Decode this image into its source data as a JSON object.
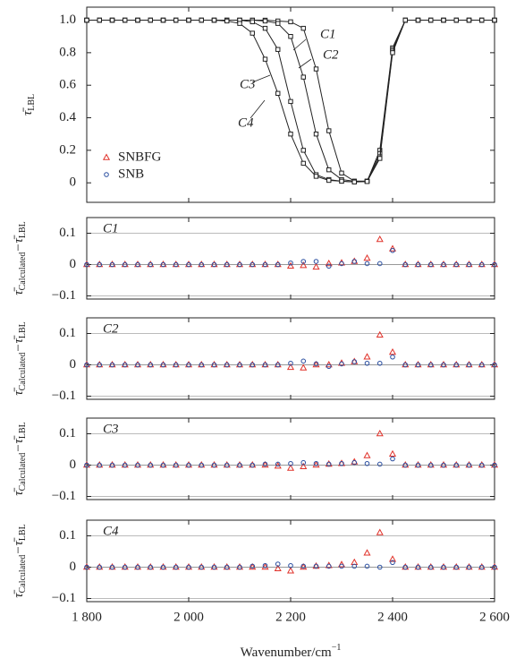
{
  "chart_data": [
    {
      "type": "line",
      "marker": "square",
      "ylabel": [
        "τ̄",
        "LBL"
      ],
      "x": [
        1800,
        1825,
        1850,
        1875,
        1900,
        1925,
        1950,
        1975,
        2000,
        2025,
        2050,
        2075,
        2100,
        2125,
        2150,
        2175,
        2200,
        2225,
        2250,
        2275,
        2300,
        2325,
        2350,
        2375,
        2400,
        2425,
        2450,
        2475,
        2500,
        2525,
        2550,
        2575,
        2600
      ],
      "xlim": [
        1800,
        2600
      ],
      "xticks": [
        1800,
        2000,
        2200,
        2400,
        2600
      ],
      "ylim": [
        -0.12,
        1.08
      ],
      "yticks": [
        0,
        0.2,
        0.4,
        0.6,
        0.8,
        {
          "value": 1,
          "label": "1.0"
        }
      ],
      "series": [
        {
          "name": "C1",
          "color": "#222222",
          "values": [
            1,
            1,
            1,
            1,
            1,
            1,
            1,
            1,
            1,
            1,
            1,
            1,
            1,
            1,
            1,
            0.995,
            0.99,
            0.95,
            0.7,
            0.32,
            0.06,
            0.01,
            0.01,
            0.2,
            0.83,
            1,
            1,
            1,
            1,
            1,
            1,
            1,
            1
          ]
        },
        {
          "name": "C2",
          "color": "#222222",
          "values": [
            1,
            1,
            1,
            1,
            1,
            1,
            1,
            1,
            1,
            1,
            1,
            1,
            1,
            1,
            0.995,
            0.98,
            0.9,
            0.65,
            0.3,
            0.08,
            0.02,
            0.01,
            0.01,
            0.18,
            0.82,
            1,
            1,
            1,
            1,
            1,
            1,
            1,
            1
          ]
        },
        {
          "name": "C3",
          "color": "#222222",
          "values": [
            1,
            1,
            1,
            1,
            1,
            1,
            1,
            1,
            1,
            1,
            1,
            1,
            1,
            0.99,
            0.95,
            0.82,
            0.5,
            0.2,
            0.05,
            0.02,
            0.01,
            0.005,
            0.01,
            0.16,
            0.81,
            1,
            1,
            1,
            1,
            1,
            1,
            1,
            1
          ]
        },
        {
          "name": "C4",
          "color": "#222222",
          "values": [
            1,
            1,
            1,
            1,
            1,
            1,
            1,
            1,
            1,
            1,
            1,
            0.995,
            0.98,
            0.92,
            0.76,
            0.55,
            0.3,
            0.12,
            0.04,
            0.015,
            0.01,
            0.005,
            0.008,
            0.15,
            0.8,
            1,
            1,
            1,
            1,
            1,
            1,
            1,
            1
          ]
        }
      ],
      "legend": [
        {
          "name": "SNBFG",
          "color": "#e0322a",
          "marker": "triangle"
        },
        {
          "name": "SNB",
          "color": "#2a4ea0",
          "marker": "circle"
        }
      ]
    },
    {
      "type": "scatter",
      "panel_label": "C1",
      "ylabel": [
        "τ̄",
        "Calculated",
        "−τ̄",
        "LBL"
      ],
      "x": [
        1800,
        1825,
        1850,
        1875,
        1900,
        1925,
        1950,
        1975,
        2000,
        2025,
        2050,
        2075,
        2100,
        2125,
        2150,
        2175,
        2200,
        2225,
        2250,
        2275,
        2300,
        2325,
        2350,
        2375,
        2400,
        2425,
        2450,
        2475,
        2500,
        2525,
        2550,
        2575,
        2600
      ],
      "xlim": [
        1800,
        2600
      ],
      "xticks": [
        1800,
        2000,
        2200,
        2400,
        2600
      ],
      "ylim": [
        -0.11,
        0.15
      ],
      "yticks": [
        {
          "value": -0.1,
          "label": "−0.1"
        },
        0,
        0.1
      ],
      "grid": true,
      "series": [
        {
          "color": "#e0322a",
          "marker": "triangle",
          "values": [
            0,
            0,
            0,
            0,
            0,
            0,
            0,
            0,
            0,
            0,
            0,
            0,
            0,
            0,
            0,
            0,
            -0.005,
            -0.003,
            -0.008,
            0.003,
            0.005,
            0.01,
            0.02,
            0.08,
            0.05,
            0,
            0,
            0,
            0,
            0,
            0,
            0,
            0
          ]
        },
        {
          "color": "#2a4ea0",
          "marker": "circle",
          "values": [
            0,
            0,
            0,
            0,
            0,
            0,
            0,
            0,
            0,
            0,
            0,
            0,
            0,
            0,
            0,
            0,
            0.005,
            0.01,
            0.01,
            -0.005,
            0.003,
            0.01,
            0.003,
            0.003,
            0.045,
            0,
            0,
            0,
            0,
            0,
            0,
            0,
            0
          ]
        }
      ]
    },
    {
      "type": "scatter",
      "panel_label": "C2",
      "ylabel": [
        "τ̄",
        "Calculated",
        "−τ̄",
        "LBL"
      ],
      "x": [
        1800,
        1825,
        1850,
        1875,
        1900,
        1925,
        1950,
        1975,
        2000,
        2025,
        2050,
        2075,
        2100,
        2125,
        2150,
        2175,
        2200,
        2225,
        2250,
        2275,
        2300,
        2325,
        2350,
        2375,
        2400,
        2425,
        2450,
        2475,
        2500,
        2525,
        2550,
        2575,
        2600
      ],
      "xlim": [
        1800,
        2600
      ],
      "xticks": [
        1800,
        2000,
        2200,
        2400,
        2600
      ],
      "ylim": [
        -0.11,
        0.15
      ],
      "yticks": [
        {
          "value": -0.1,
          "label": "−0.1"
        },
        0,
        0.1
      ],
      "grid": true,
      "series": [
        {
          "color": "#e0322a",
          "marker": "triangle",
          "values": [
            0,
            0,
            0,
            0,
            0,
            0,
            0,
            0,
            0,
            0,
            0,
            0,
            0,
            0,
            0,
            0,
            -0.008,
            -0.01,
            0,
            0,
            0.005,
            0.01,
            0.025,
            0.095,
            0.04,
            0,
            0,
            0,
            0,
            0,
            0,
            0,
            0
          ]
        },
        {
          "color": "#2a4ea0",
          "marker": "circle",
          "values": [
            0,
            0,
            0,
            0,
            0,
            0,
            0,
            0,
            0,
            0,
            0,
            0,
            0,
            0,
            0,
            0,
            0.005,
            0.012,
            0.003,
            -0.005,
            0.003,
            0.01,
            0.005,
            0.005,
            0.025,
            0,
            0,
            0,
            0,
            0,
            0,
            0,
            0
          ]
        }
      ]
    },
    {
      "type": "scatter",
      "panel_label": "C3",
      "ylabel": [
        "τ̄",
        "Calculated",
        "−τ̄",
        "LBL"
      ],
      "x": [
        1800,
        1825,
        1850,
        1875,
        1900,
        1925,
        1950,
        1975,
        2000,
        2025,
        2050,
        2075,
        2100,
        2125,
        2150,
        2175,
        2200,
        2225,
        2250,
        2275,
        2300,
        2325,
        2350,
        2375,
        2400,
        2425,
        2450,
        2475,
        2500,
        2525,
        2550,
        2575,
        2600
      ],
      "xlim": [
        1800,
        2600
      ],
      "xticks": [
        1800,
        2000,
        2200,
        2400,
        2600
      ],
      "ylim": [
        -0.11,
        0.15
      ],
      "yticks": [
        {
          "value": -0.1,
          "label": "−0.1"
        },
        0,
        0.1
      ],
      "grid": true,
      "series": [
        {
          "color": "#e0322a",
          "marker": "triangle",
          "values": [
            0,
            0,
            0,
            0,
            0,
            0,
            0,
            0,
            0,
            0,
            0,
            0,
            0,
            0,
            0,
            -0.003,
            -0.01,
            -0.005,
            0,
            0.003,
            0.005,
            0.01,
            0.03,
            0.1,
            0.035,
            0,
            0,
            0,
            0,
            0,
            0,
            0,
            0
          ]
        },
        {
          "color": "#2a4ea0",
          "marker": "circle",
          "values": [
            0,
            0,
            0,
            0,
            0,
            0,
            0,
            0,
            0,
            0,
            0,
            0,
            0,
            0,
            0.003,
            0.003,
            0.005,
            0.008,
            0.005,
            0.003,
            0.005,
            0.008,
            0.005,
            0.003,
            0.02,
            0,
            0,
            0,
            0,
            0,
            0,
            0,
            0
          ]
        }
      ]
    },
    {
      "type": "scatter",
      "panel_label": "C4",
      "ylabel": [
        "τ̄",
        "Calculated",
        "−τ̄",
        "LBL"
      ],
      "xlabel": [
        "Wavenumber/cm",
        "−1"
      ],
      "x": [
        1800,
        1825,
        1850,
        1875,
        1900,
        1925,
        1950,
        1975,
        2000,
        2025,
        2050,
        2075,
        2100,
        2125,
        2150,
        2175,
        2200,
        2225,
        2250,
        2275,
        2300,
        2325,
        2350,
        2375,
        2400,
        2425,
        2450,
        2475,
        2500,
        2525,
        2550,
        2575,
        2600
      ],
      "xlim": [
        1800,
        2600
      ],
      "xticks": [
        {
          "value": 1800,
          "label": "1 800"
        },
        {
          "value": 2000,
          "label": "2 000"
        },
        {
          "value": 2200,
          "label": "2 200"
        },
        {
          "value": 2400,
          "label": "2 400"
        },
        {
          "value": 2600,
          "label": "2 600"
        }
      ],
      "ylim": [
        -0.11,
        0.15
      ],
      "yticks": [
        {
          "value": -0.1,
          "label": "−0.1"
        },
        0,
        0.1
      ],
      "grid": true,
      "series": [
        {
          "color": "#e0322a",
          "marker": "triangle",
          "values": [
            0,
            0,
            0,
            0,
            0,
            0,
            0,
            0,
            0,
            0,
            0,
            0,
            0,
            0,
            0,
            -0.005,
            -0.012,
            0,
            0.003,
            0.005,
            0.008,
            0.015,
            0.045,
            0.11,
            0.025,
            0,
            0,
            0,
            0,
            0,
            0,
            0,
            0
          ]
        },
        {
          "color": "#2a4ea0",
          "marker": "circle",
          "values": [
            0,
            0,
            0,
            0,
            0,
            0,
            0,
            0,
            0,
            0,
            0,
            0,
            0,
            0.003,
            0.005,
            0.01,
            0.005,
            0.003,
            0.003,
            0.003,
            0.003,
            0.003,
            0.003,
            0,
            0.015,
            0,
            0,
            0,
            0,
            0,
            0,
            0,
            0
          ]
        }
      ]
    }
  ]
}
